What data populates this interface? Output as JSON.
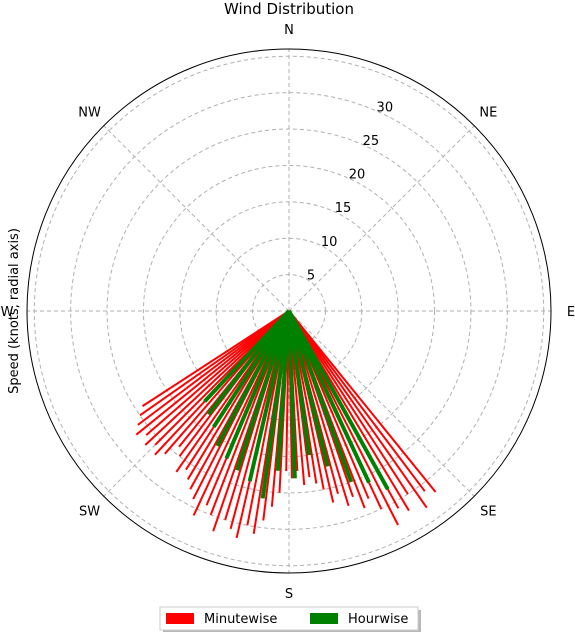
{
  "chart_data": {
    "type": "polar-bar",
    "title": "Wind Distribution",
    "ylabel": "Speed (knots, radial axis)",
    "direction_labels": [
      {
        "label": "N",
        "angle_deg": 0
      },
      {
        "label": "NE",
        "angle_deg": 45
      },
      {
        "label": "E",
        "angle_deg": 90
      },
      {
        "label": "SE",
        "angle_deg": 135
      },
      {
        "label": "S",
        "angle_deg": 180
      },
      {
        "label": "SW",
        "angle_deg": 225
      },
      {
        "label": "W",
        "angle_deg": 270
      },
      {
        "label": "NW",
        "angle_deg": 315
      }
    ],
    "radial_ticks": [
      5,
      10,
      15,
      20,
      25,
      30
    ],
    "rlim": [
      0,
      36
    ],
    "grid": true,
    "legend_position": "bottom-center",
    "series": [
      {
        "name": "Minutewise",
        "color": "#ff0000",
        "points": [
          {
            "dir": 141,
            "speed": 32
          },
          {
            "dir": 143,
            "speed": 31
          },
          {
            "dir": 145,
            "speed": 33
          },
          {
            "dir": 147,
            "speed": 30
          },
          {
            "dir": 149,
            "speed": 32
          },
          {
            "dir": 151,
            "speed": 31
          },
          {
            "dir": 153,
            "speed": 33
          },
          {
            "dir": 155,
            "speed": 30
          },
          {
            "dir": 157,
            "speed": 28
          },
          {
            "dir": 159,
            "speed": 29
          },
          {
            "dir": 161,
            "speed": 27
          },
          {
            "dir": 163,
            "speed": 28
          },
          {
            "dir": 165,
            "speed": 26
          },
          {
            "dir": 167,
            "speed": 27
          },
          {
            "dir": 169,
            "speed": 25
          },
          {
            "dir": 171,
            "speed": 24
          },
          {
            "dir": 173,
            "speed": 23
          },
          {
            "dir": 175,
            "speed": 24
          },
          {
            "dir": 177,
            "speed": 22
          },
          {
            "dir": 179,
            "speed": 23
          },
          {
            "dir": 181,
            "speed": 22
          },
          {
            "dir": 183,
            "speed": 25
          },
          {
            "dir": 185,
            "speed": 27
          },
          {
            "dir": 187,
            "speed": 29
          },
          {
            "dir": 189,
            "speed": 31
          },
          {
            "dir": 191,
            "speed": 30
          },
          {
            "dir": 193,
            "speed": 32
          },
          {
            "dir": 195,
            "speed": 31
          },
          {
            "dir": 197,
            "speed": 30
          },
          {
            "dir": 199,
            "speed": 32
          },
          {
            "dir": 201,
            "speed": 30
          },
          {
            "dir": 203,
            "speed": 29
          },
          {
            "dir": 205,
            "speed": 31
          },
          {
            "dir": 207,
            "speed": 29
          },
          {
            "dir": 209,
            "speed": 28
          },
          {
            "dir": 211,
            "speed": 27
          },
          {
            "dir": 213,
            "speed": 26
          },
          {
            "dir": 215,
            "speed": 27
          },
          {
            "dir": 217,
            "speed": 25
          },
          {
            "dir": 219,
            "speed": 24
          },
          {
            "dir": 221,
            "speed": 26
          },
          {
            "dir": 223,
            "speed": 27
          },
          {
            "dir": 225,
            "speed": 26
          },
          {
            "dir": 227,
            "speed": 27
          },
          {
            "dir": 229,
            "speed": 26
          },
          {
            "dir": 231,
            "speed": 27
          },
          {
            "dir": 233,
            "speed": 26
          },
          {
            "dir": 235,
            "speed": 25
          },
          {
            "dir": 237,
            "speed": 24
          }
        ]
      },
      {
        "name": "Hourwise",
        "color": "#008000",
        "points": [
          {
            "dir": 151,
            "speed": 28
          },
          {
            "dir": 155,
            "speed": 26
          },
          {
            "dir": 160,
            "speed": 25
          },
          {
            "dir": 166,
            "speed": 22
          },
          {
            "dir": 172,
            "speed": 20
          },
          {
            "dir": 178,
            "speed": 23
          },
          {
            "dir": 184,
            "speed": 22
          },
          {
            "dir": 188,
            "speed": 26
          },
          {
            "dir": 193,
            "speed": 24
          },
          {
            "dir": 198,
            "speed": 23
          },
          {
            "dir": 203,
            "speed": 22
          },
          {
            "dir": 208,
            "speed": 21
          },
          {
            "dir": 213,
            "speed": 19
          },
          {
            "dir": 218,
            "speed": 18
          },
          {
            "dir": 223,
            "speed": 17
          }
        ]
      }
    ]
  }
}
